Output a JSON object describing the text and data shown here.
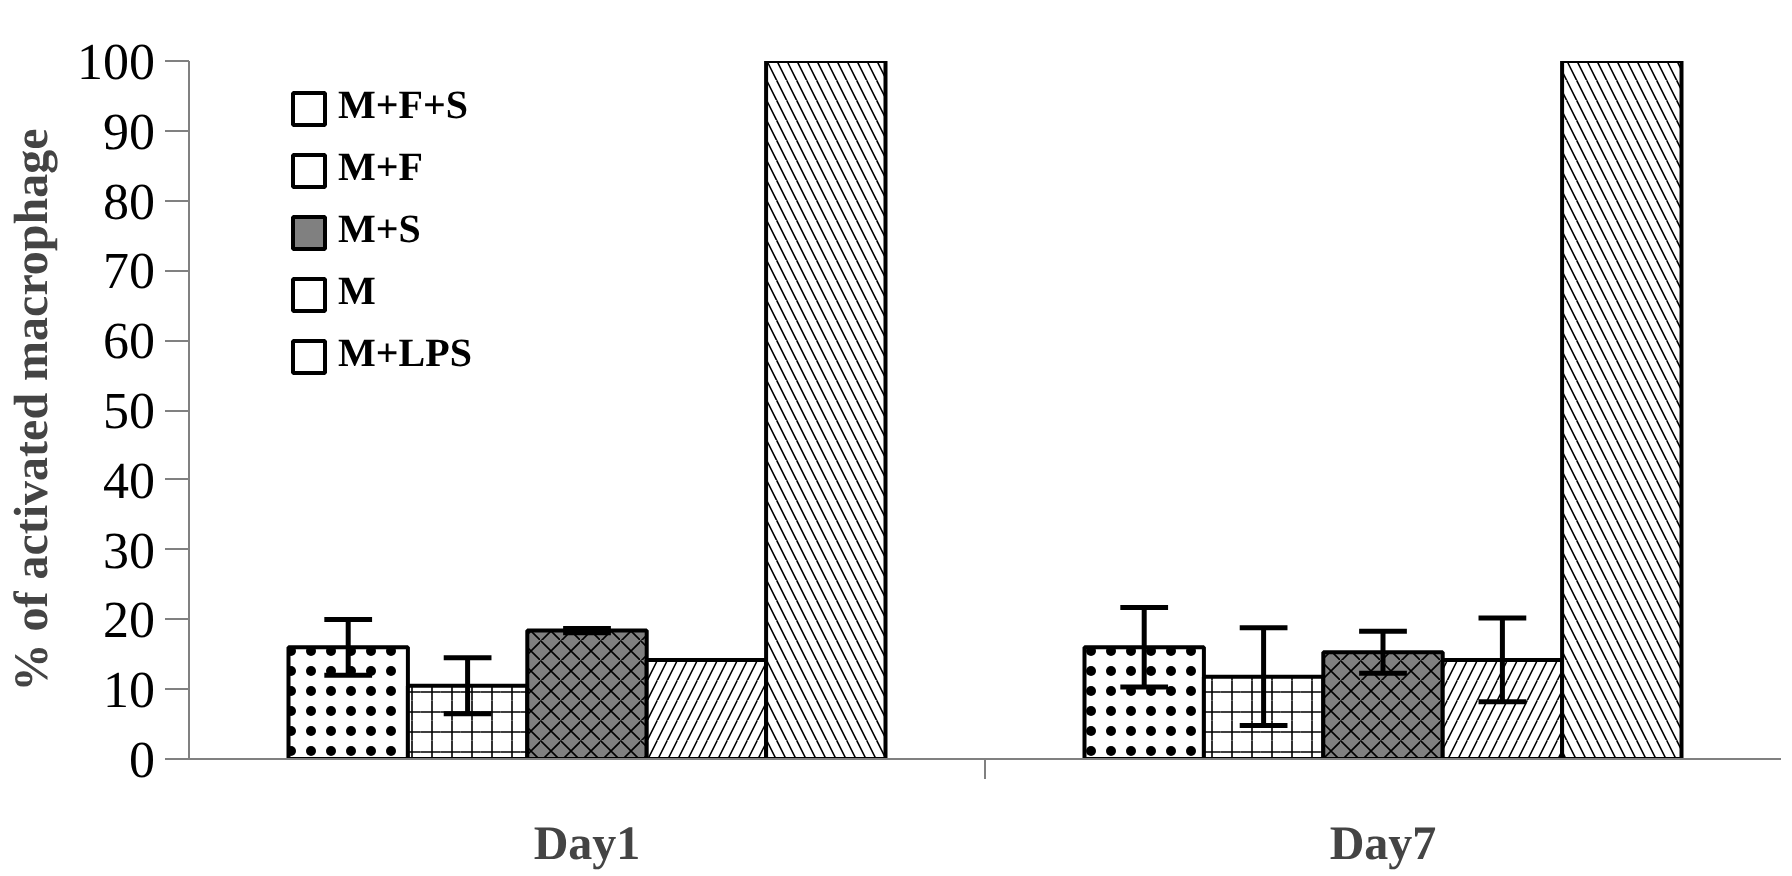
{
  "chart_data": {
    "type": "bar",
    "ylabel": "% of activated macrophage",
    "categories": [
      "Day1",
      "Day7"
    ],
    "series": [
      {
        "name": "M+F+S",
        "color": "#ffffff",
        "values": [
          16,
          16
        ],
        "errors": [
          4,
          5.7
        ]
      },
      {
        "name": "M+F",
        "color": "#ffffff",
        "values": [
          10.5,
          11.8
        ],
        "errors": [
          4,
          7
        ]
      },
      {
        "name": "M+S",
        "color": "#808080",
        "values": [
          18.4,
          15.3
        ],
        "errors": [
          0.3,
          3
        ]
      },
      {
        "name": "M",
        "color": "#ffffff",
        "values": [
          14.2,
          14.2
        ],
        "errors": [
          null,
          6
        ]
      },
      {
        "name": "M+LPS",
        "color": "#ffffff",
        "values": [
          100,
          100
        ],
        "errors": [
          null,
          null
        ]
      }
    ],
    "ylim": [
      0,
      100
    ],
    "yticks": [
      0,
      10,
      20,
      30,
      40,
      50,
      60,
      70,
      80,
      90,
      100
    ],
    "grid": false,
    "legend": "top left"
  }
}
